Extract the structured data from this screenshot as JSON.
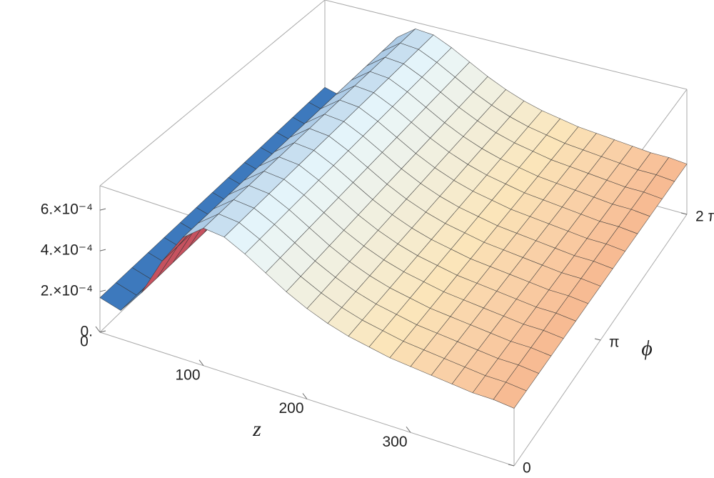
{
  "chart_data": {
    "type": "surface3d",
    "xlabel": "z",
    "ylabel": "ϕ",
    "x": [
      0,
      20,
      40,
      60,
      80,
      100,
      120,
      140,
      160,
      180,
      200,
      220,
      240,
      260,
      280,
      300,
      320,
      340,
      360,
      380,
      400
    ],
    "values": [
      0.00017,
      0.00014,
      0.00026,
      0.00045,
      0.0006,
      0.00068,
      0.00067,
      0.00062,
      0.00056,
      0.0005,
      0.00045,
      0.00041,
      0.00038,
      0.00036,
      0.00034,
      0.00033,
      0.00032,
      0.00031,
      0.0003,
      0.0003,
      0.00029
    ],
    "xlim": [
      0,
      400
    ],
    "xticks": [
      0,
      100,
      200,
      300
    ],
    "ylim": [
      0,
      6.283185
    ],
    "yticks": [
      {
        "value": 0,
        "label": "0"
      },
      {
        "value": 3.141593,
        "label": "π"
      },
      {
        "value": 6.283185,
        "label": "2 π"
      }
    ],
    "zlim": [
      0,
      0.00072
    ],
    "zticks": [
      {
        "value": 0,
        "label": "0."
      },
      {
        "value": 0.0002,
        "label": "2.×10⁻⁴"
      },
      {
        "value": 0.0004,
        "label": "4.×10⁻⁴"
      },
      {
        "value": 0.0006,
        "label": "6.×10⁻⁴"
      }
    ],
    "colormap": [
      "#2f6fb8",
      "#e9f7fc",
      "#fbe6bb",
      "#f7b890"
    ],
    "backface_color": "#c6525f"
  }
}
